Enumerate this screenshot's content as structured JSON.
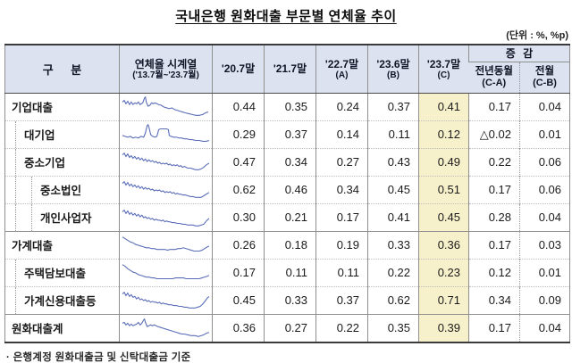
{
  "title": "국내은행 원화대출 부문별 연체율 추이",
  "unit_note": "(단위 : %, %p)",
  "footnote": "· 은행계정 원화대출금 및 신탁대출금 기준",
  "colors": {
    "header_bg": "#dde2f0",
    "highlight_col_bg": "#f7f1cb",
    "sparkline": "#5b6db8",
    "border_dark": "#3a3a3a",
    "border_gray": "#8f8f8f"
  },
  "table": {
    "header": {
      "category": "구 분",
      "timeseries": {
        "l1": "연체율 시계열",
        "l2": "('13.7월~'23.7월)"
      },
      "periods": [
        {
          "l1": "'20.7말",
          "l2": ""
        },
        {
          "l1": "'21.7말",
          "l2": ""
        },
        {
          "l1": "'22.7말",
          "l2": "(A)"
        },
        {
          "l1": "'23.6말",
          "l2": "(B)"
        },
        {
          "l1": "'23.7말",
          "l2": "(C)"
        }
      ],
      "change_group": "증 감",
      "change_cols": [
        {
          "l1": "전년동월",
          "l2": "(C-A)"
        },
        {
          "l1": "전월",
          "l2": "(C-B)"
        }
      ]
    },
    "rows": [
      {
        "label": "기업대출",
        "indent": 0,
        "group_start": false,
        "values": [
          "0.44",
          "0.35",
          "0.24",
          "0.37",
          "0.41",
          "0.17",
          "0.04"
        ],
        "spark": "1,8 3,6 5,10 7,7 9,11 11,8 13,11 15,9 17,10 19,8 21,11 24,9 26,3 27,2 28,8 30,13 32,12 34,9 36,10 38,9 40,10 42,11 45,12 48,14 51,15 54,16 57,15 60,17 63,18 66,19 69,20 72,21 76,22 80,23 84,24 88,24 92,23 95,21 98,20"
      },
      {
        "label": "대기업",
        "indent": 1,
        "group_start": false,
        "values": [
          "0.29",
          "0.37",
          "0.14",
          "0.11",
          "0.12",
          "△0.02",
          "0.01"
        ],
        "spark": "1,15 4,16 7,17 10,16 13,18 16,17 19,18 22,16 25,17 27,12 29,3 30,2 31,5 33,14 35,16 38,17 40,16 42,8 44,7 48,7 51,7 53,8 54,15 56,16 59,17 62,17 65,18 68,18 71,19 74,19 77,20 80,20 84,21 88,21 92,22 96,22 99,21"
      },
      {
        "label": "중소기업",
        "indent": 1,
        "group_start": false,
        "values": [
          "0.47",
          "0.34",
          "0.27",
          "0.43",
          "0.49",
          "0.22",
          "0.06"
        ],
        "spark": "1,5 3,3 5,7 7,4 9,8 11,6 13,9 15,7 17,10 19,8 21,11 23,9 25,12 27,10 29,13 31,11 33,13 35,12 37,14 39,13 41,15 43,14 45,16 47,15 49,16 51,15 53,17 55,16 57,18 59,17 61,18 63,17 65,19 67,18 69,20 71,19 73,20 75,21 78,21 81,22 84,23 87,23 90,22 93,20 96,17 99,15"
      },
      {
        "label": "중소법인",
        "indent": 2,
        "group_start": false,
        "values": [
          "0.62",
          "0.46",
          "0.34",
          "0.45",
          "0.51",
          "0.17",
          "0.06"
        ],
        "spark": "1,6 3,4 5,8 7,5 9,9 11,7 13,10 15,8 17,11 19,9 21,12 23,10 25,13 27,11 29,13 31,12 33,14 35,13 37,15 39,14 41,15 43,14 45,16 47,15 49,17 51,16 53,17 55,16 57,18 59,17 61,19 63,18 65,19 67,19 69,20 72,20 75,21 78,22 81,22 84,23 87,23 90,23 93,21 96,19 99,17"
      },
      {
        "label": "개인사업자",
        "indent": 2,
        "group_start": false,
        "values": [
          "0.30",
          "0.21",
          "0.17",
          "0.41",
          "0.45",
          "0.28",
          "0.04"
        ],
        "spark": "1,7 3,5 5,9 7,6 9,10 11,8 13,11 15,9 17,12 19,10 21,13 23,11 25,14 27,13 29,15 31,14 33,16 35,15 37,17 39,16 41,17 43,17 45,18 47,17 49,19 51,18 53,19 55,19 57,20 60,20 63,21 66,21 69,22 72,22 75,23 78,23 81,23 84,24 87,24 90,23 93,22 96,18 99,15"
      },
      {
        "label": "가계대출",
        "indent": 0,
        "group_start": true,
        "values": [
          "0.26",
          "0.18",
          "0.19",
          "0.33",
          "0.36",
          "0.17",
          "0.03"
        ],
        "spark": "1,4 4,6 7,8 10,10 13,11 16,13 19,14 22,15 25,16 28,17 31,17 34,18 37,18 40,19 43,19 46,19 49,19 52,20 55,19 58,19 61,19 64,18 67,18 70,17 73,18 76,19 79,20 82,21 85,21 88,21 91,20 94,18 97,16 99,15"
      },
      {
        "label": "주택담보대출",
        "indent": 1,
        "group_start": false,
        "values": [
          "0.17",
          "0.11",
          "0.11",
          "0.22",
          "0.23",
          "0.12",
          "0.01"
        ],
        "spark": "1,4 4,6 7,9 10,11 13,13 16,14 19,16 22,17 25,18 28,19 31,19 34,20 37,20 40,21 43,21 46,21 49,21 52,21 55,21 58,21 61,20 64,20 67,20 70,20 73,21 76,21 79,21 82,21 85,21 88,21 91,20 94,19 97,18 99,17"
      },
      {
        "label": "가계신용대출등",
        "indent": 1,
        "group_start": false,
        "values": [
          "0.45",
          "0.33",
          "0.37",
          "0.62",
          "0.71",
          "0.34",
          "0.09"
        ],
        "spark": "1,6 3,4 5,8 7,5 9,9 11,7 13,10 15,9 17,12 19,10 21,13 23,12 25,14 27,13 29,15 31,14 33,16 35,15 37,16 39,16 41,17 43,16 45,18 47,17 49,18 51,18 53,19 56,19 59,20 62,20 65,21 68,21 71,22 74,22 77,23 80,23 83,23 86,22 89,21 92,18 95,14 97,11 99,9"
      },
      {
        "label": "원화대출계",
        "indent": 0,
        "group_start": true,
        "values": [
          "0.36",
          "0.27",
          "0.22",
          "0.35",
          "0.39",
          "0.17",
          "0.04"
        ],
        "spark": "1,8 3,7 5,10 7,8 9,11 11,9 13,11 15,10 17,9 19,7 21,10 23,8 25,4 26,3 27,7 29,12 31,11 33,10 35,11 37,10 39,11 41,12 44,13 47,14 50,15 53,16 56,17 59,18 62,19 65,20 68,21 71,21 75,22 79,23 83,23 87,24 90,23 93,22 96,20 99,19"
      }
    ]
  }
}
